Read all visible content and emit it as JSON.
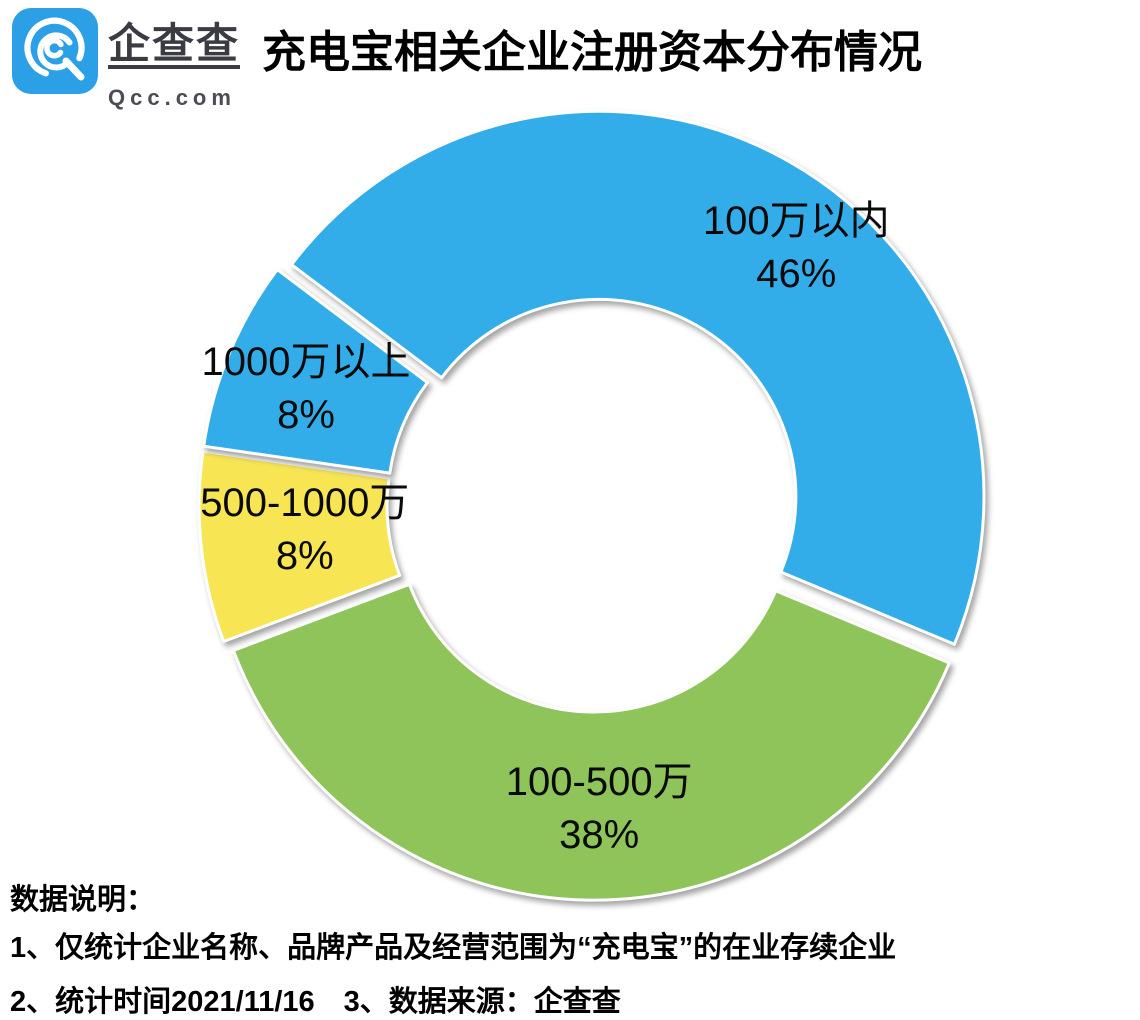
{
  "header": {
    "logo": {
      "wordmark": "企查查",
      "domain": "Qcc.com",
      "brand_blue": "#2BA0E6"
    },
    "title": "充电宝相关企业注册资本分布情况"
  },
  "chart_data": {
    "type": "pie",
    "subtype": "exploded-donut",
    "title": "充电宝相关企业注册资本分布情况",
    "unit": "%",
    "segments": [
      {
        "label": "100万以内",
        "value": 46,
        "pct_label": "46%",
        "color": "#33ADE9"
      },
      {
        "label": "100-500万",
        "value": 38,
        "pct_label": "38%",
        "color": "#8EC45A"
      },
      {
        "label": "500-1000万",
        "value": 8,
        "pct_label": "8%",
        "color": "#F7E554"
      },
      {
        "label": "1000万以上",
        "value": 8,
        "pct_label": "8%",
        "color": "#33ADE9"
      }
    ],
    "layout": {
      "start_angle_deg": 307,
      "clockwise": true,
      "center": [
        594,
        505
      ],
      "inner_radius": 197,
      "outer_radius": 385,
      "explode": 10,
      "label_radius": [
        330,
        300,
        290,
        312
      ],
      "label_angle_offset": [
        8,
        -2,
        2,
        0
      ],
      "label_line_offsets": [
        -10,
        43
      ],
      "labels_inside": true,
      "legend": "none",
      "grid": false
    }
  },
  "notes": {
    "heading": "数据说明：",
    "line1": "1、仅统计企业名称、品牌产品及经营范围为“充电宝”的在业存续企业",
    "line2": "2、统计时间2021/11/16　3、数据来源：企查查"
  }
}
